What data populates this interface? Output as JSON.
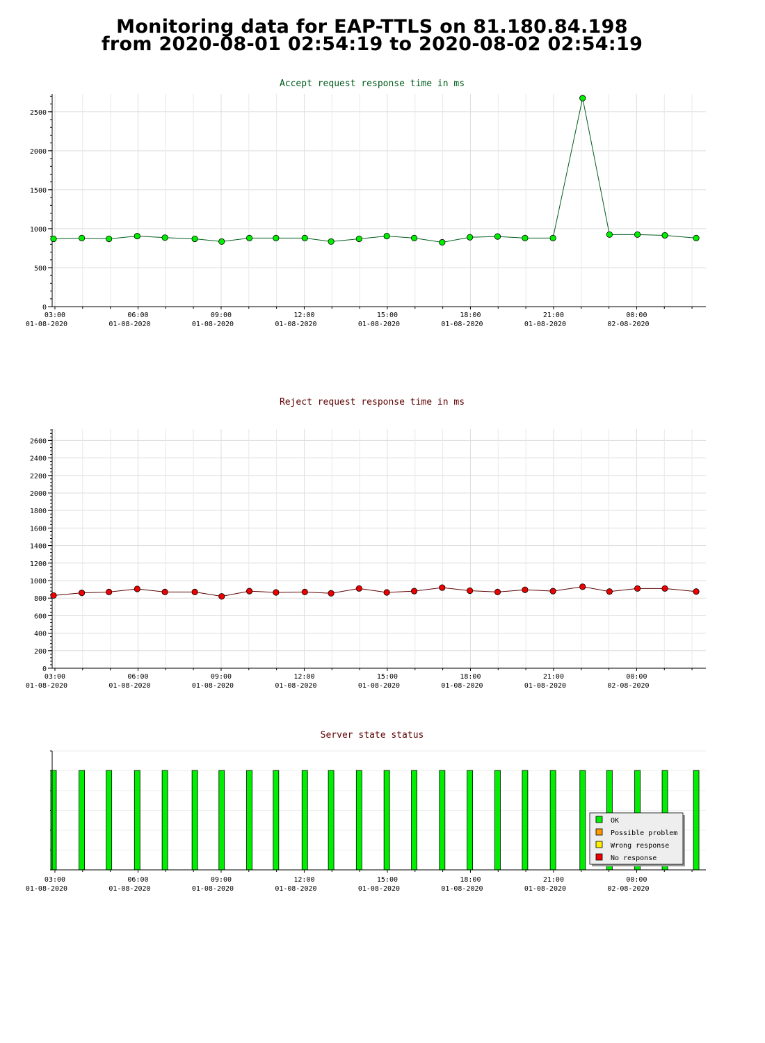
{
  "page": {
    "title_line1": "Monitoring data for EAP-TTLS on 81.180.84.198",
    "title_line2": "from 2020-08-01 02:54:19 to 2020-08-02 02:54:19"
  },
  "colors": {
    "accept_title": "#005c1c",
    "reject_title": "#5c0000",
    "status_title": "#5c0000",
    "ok": "#00ee00",
    "possible_problem": "#ff9900",
    "wrong_response": "#ffee00",
    "no_response": "#ee0000",
    "accept_line": "#005c1c",
    "reject_line": "#5c0000"
  },
  "chart_data": [
    {
      "id": "accept",
      "type": "line",
      "title": "Accept request response time in ms",
      "x_tick_labels": [
        [
          "03:00",
          "01-08-2020"
        ],
        [
          "06:00",
          "01-08-2020"
        ],
        [
          "09:00",
          "01-08-2020"
        ],
        [
          "12:00",
          "01-08-2020"
        ],
        [
          "15:00",
          "01-08-2020"
        ],
        [
          "18:00",
          "01-08-2020"
        ],
        [
          "21:00",
          "01-08-2020"
        ],
        [
          "00:00",
          "02-08-2020"
        ]
      ],
      "x_tick_hours": [
        3,
        6,
        9,
        12,
        15,
        18,
        21,
        24
      ],
      "xlim_hours": [
        2.9,
        26.5
      ],
      "ylim": [
        0,
        2730
      ],
      "y_ticks": [
        0,
        500,
        1000,
        1500,
        2000,
        2500
      ],
      "grid": true,
      "x_hours": [
        2.95,
        3.97,
        4.95,
        5.97,
        6.97,
        8.05,
        9.02,
        10.02,
        10.98,
        12.02,
        12.97,
        13.98,
        14.98,
        15.97,
        16.98,
        17.98,
        18.98,
        19.97,
        20.98,
        22.05,
        23.02,
        24.03,
        25.02,
        26.15
      ],
      "values": [
        870,
        880,
        870,
        905,
        885,
        870,
        835,
        880,
        880,
        880,
        835,
        870,
        905,
        880,
        825,
        890,
        900,
        880,
        880,
        2675,
        925,
        925,
        915,
        880
      ]
    },
    {
      "id": "reject",
      "type": "line",
      "title": "Reject request response time in ms",
      "x_tick_labels": [
        [
          "03:00",
          "01-08-2020"
        ],
        [
          "06:00",
          "01-08-2020"
        ],
        [
          "09:00",
          "01-08-2020"
        ],
        [
          "12:00",
          "01-08-2020"
        ],
        [
          "15:00",
          "01-08-2020"
        ],
        [
          "18:00",
          "01-08-2020"
        ],
        [
          "21:00",
          "01-08-2020"
        ],
        [
          "00:00",
          "02-08-2020"
        ]
      ],
      "x_tick_hours": [
        3,
        6,
        9,
        12,
        15,
        18,
        21,
        24
      ],
      "xlim_hours": [
        2.9,
        26.5
      ],
      "ylim": [
        0,
        2730
      ],
      "y_ticks": [
        0,
        200,
        400,
        600,
        800,
        1000,
        1200,
        1400,
        1600,
        1800,
        2000,
        2200,
        2400,
        2600
      ],
      "grid": true,
      "x_hours": [
        2.95,
        3.97,
        4.95,
        5.97,
        6.97,
        8.05,
        9.02,
        10.02,
        10.98,
        12.02,
        12.97,
        13.98,
        14.98,
        15.97,
        16.98,
        17.98,
        18.98,
        19.97,
        20.98,
        22.05,
        23.02,
        24.03,
        25.02,
        26.15
      ],
      "values": [
        830,
        860,
        870,
        905,
        870,
        870,
        820,
        880,
        865,
        870,
        855,
        910,
        865,
        880,
        920,
        885,
        870,
        895,
        880,
        930,
        875,
        910,
        910,
        875
      ]
    },
    {
      "id": "status",
      "type": "bar",
      "title": "Server state status",
      "x_tick_labels": [
        [
          "03:00",
          "01-08-2020"
        ],
        [
          "06:00",
          "01-08-2020"
        ],
        [
          "09:00",
          "01-08-2020"
        ],
        [
          "12:00",
          "01-08-2020"
        ],
        [
          "15:00",
          "01-08-2020"
        ],
        [
          "18:00",
          "01-08-2020"
        ],
        [
          "21:00",
          "01-08-2020"
        ],
        [
          "00:00",
          "02-08-2020"
        ]
      ],
      "x_tick_hours": [
        3,
        6,
        9,
        12,
        15,
        18,
        21,
        24
      ],
      "xlim_hours": [
        2.9,
        26.5
      ],
      "x_hours": [
        2.95,
        3.97,
        4.95,
        5.97,
        6.97,
        8.05,
        9.02,
        10.02,
        10.98,
        12.02,
        12.97,
        13.98,
        14.98,
        15.97,
        16.98,
        17.98,
        18.98,
        19.97,
        20.98,
        22.05,
        23.02,
        24.03,
        25.02,
        26.15
      ],
      "states": [
        "OK",
        "OK",
        "OK",
        "OK",
        "OK",
        "OK",
        "OK",
        "OK",
        "OK",
        "OK",
        "OK",
        "OK",
        "OK",
        "OK",
        "OK",
        "OK",
        "OK",
        "OK",
        "OK",
        "OK",
        "OK",
        "OK",
        "OK",
        "OK"
      ],
      "legend": {
        "placement": "bottom-right",
        "entries": [
          "OK",
          "Possible problem",
          "Wrong response",
          "No response"
        ]
      }
    }
  ]
}
